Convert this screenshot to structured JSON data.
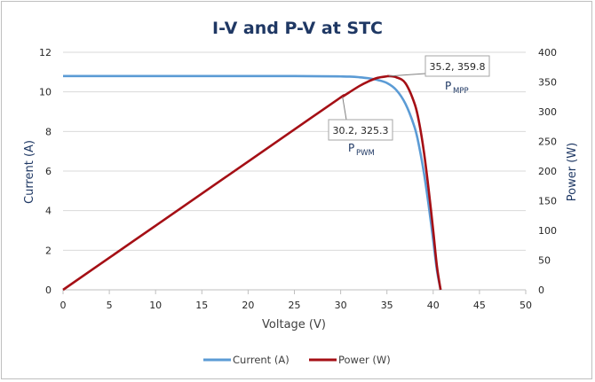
{
  "chart_data": {
    "type": "line",
    "title": "I-V and P-V at STC",
    "xlabel": "Voltage (V)",
    "ylabel": "Current (A)",
    "y2label": "Power (W)",
    "xlim": [
      0,
      50
    ],
    "ylim": [
      0,
      12
    ],
    "y2lim": [
      0,
      400
    ],
    "x_ticks": [
      0,
      5,
      10,
      15,
      20,
      25,
      30,
      35,
      40,
      45,
      50
    ],
    "y_ticks": [
      0,
      2,
      4,
      6,
      8,
      10,
      12
    ],
    "y2_ticks": [
      0,
      50,
      100,
      150,
      200,
      250,
      300,
      350,
      400
    ],
    "grid": "horizontal",
    "legend_position": "bottom",
    "colors": {
      "current": "#5b9bd5",
      "power": "#a50f15"
    },
    "series": [
      {
        "name": "Current (A)",
        "axis": "left",
        "x": [
          0,
          5,
          10,
          15,
          20,
          25,
          28,
          30,
          31,
          32,
          33,
          34,
          35,
          36,
          37,
          38,
          38.5,
          39,
          39.5,
          40,
          40.4,
          40.8
        ],
        "values": [
          10.8,
          10.8,
          10.8,
          10.8,
          10.8,
          10.8,
          10.79,
          10.78,
          10.77,
          10.74,
          10.69,
          10.6,
          10.45,
          10.1,
          9.4,
          8.2,
          7.2,
          5.9,
          4.3,
          2.5,
          1.0,
          0
        ]
      },
      {
        "name": "Power (W)",
        "axis": "right",
        "x": [
          0,
          5,
          10,
          15,
          20,
          25,
          30,
          30.2,
          32,
          33,
          34,
          35,
          35.2,
          36,
          37,
          38,
          38.5,
          39,
          39.5,
          40,
          40.4,
          40.8
        ],
        "values": [
          0,
          54,
          108,
          162,
          216,
          270,
          324,
          325.3,
          343,
          351,
          357,
          359.5,
          359.8,
          358,
          348,
          313,
          280,
          232,
          170,
          100,
          40,
          0
        ]
      }
    ],
    "annotations": [
      {
        "text": "35.2, 359.8",
        "label": "P",
        "subscript": "MPP",
        "x": 35.2,
        "y": 359.8,
        "axis": "right"
      },
      {
        "text": "30.2, 325.3",
        "label": "P",
        "subscript": "PWM",
        "x": 30.2,
        "y": 325.3,
        "axis": "right"
      }
    ]
  }
}
